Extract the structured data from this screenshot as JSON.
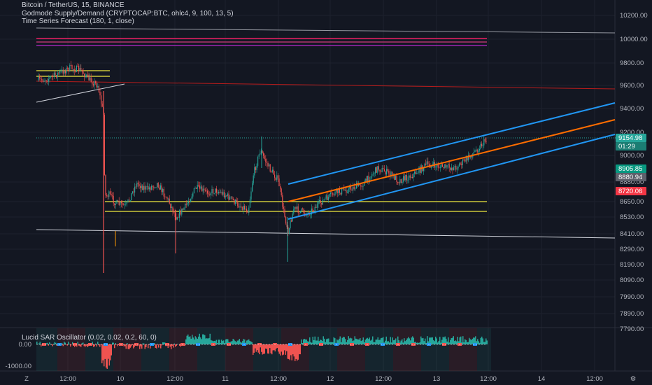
{
  "legend": {
    "symbol_line": "Bitcoin / TetherUS, 15, BINANCE",
    "indicator_1": "Godmode Supply/Demand (CRYPTOCAP:BTC, ohlc4, 9, 100, 13, 5)",
    "indicator_2": "Time Series Forecast (180, 1, close)"
  },
  "oscillator": {
    "label": "Lucid SAR Oscillator (0.02, 0.02, 0.2, 60, 0)",
    "ticks": [
      "0.00",
      "-1000.00"
    ]
  },
  "price_axis": {
    "ticks": [
      "10200.00",
      "10000.00",
      "9800.00",
      "9600.00",
      "9400.00",
      "9200.00",
      "9000.00",
      "8880.00",
      "8650.00",
      "8530.00",
      "8410.00",
      "8290.00",
      "8190.00",
      "8090.00",
      "7990.00",
      "7890.00",
      "7790.00"
    ]
  },
  "badges": {
    "last_price": "9154.98",
    "countdown": "01:29",
    "green_level": "8905.85",
    "gray_level": "8880.94",
    "red_level": "8720.06"
  },
  "time_axis": {
    "ticks": [
      "12:00",
      "10",
      "12:00",
      "11",
      "12:00",
      "12",
      "12:00",
      "13",
      "12:00",
      "14",
      "12:00"
    ],
    "left_label": "Z"
  },
  "colors": {
    "background": "#131722",
    "up_candle": "#26a69a",
    "down_candle": "#ef5350",
    "channel": "#2196f3",
    "forecast": "#ff6d00",
    "supply_zone": "#e91e63",
    "support": "#c9c63a"
  }
}
